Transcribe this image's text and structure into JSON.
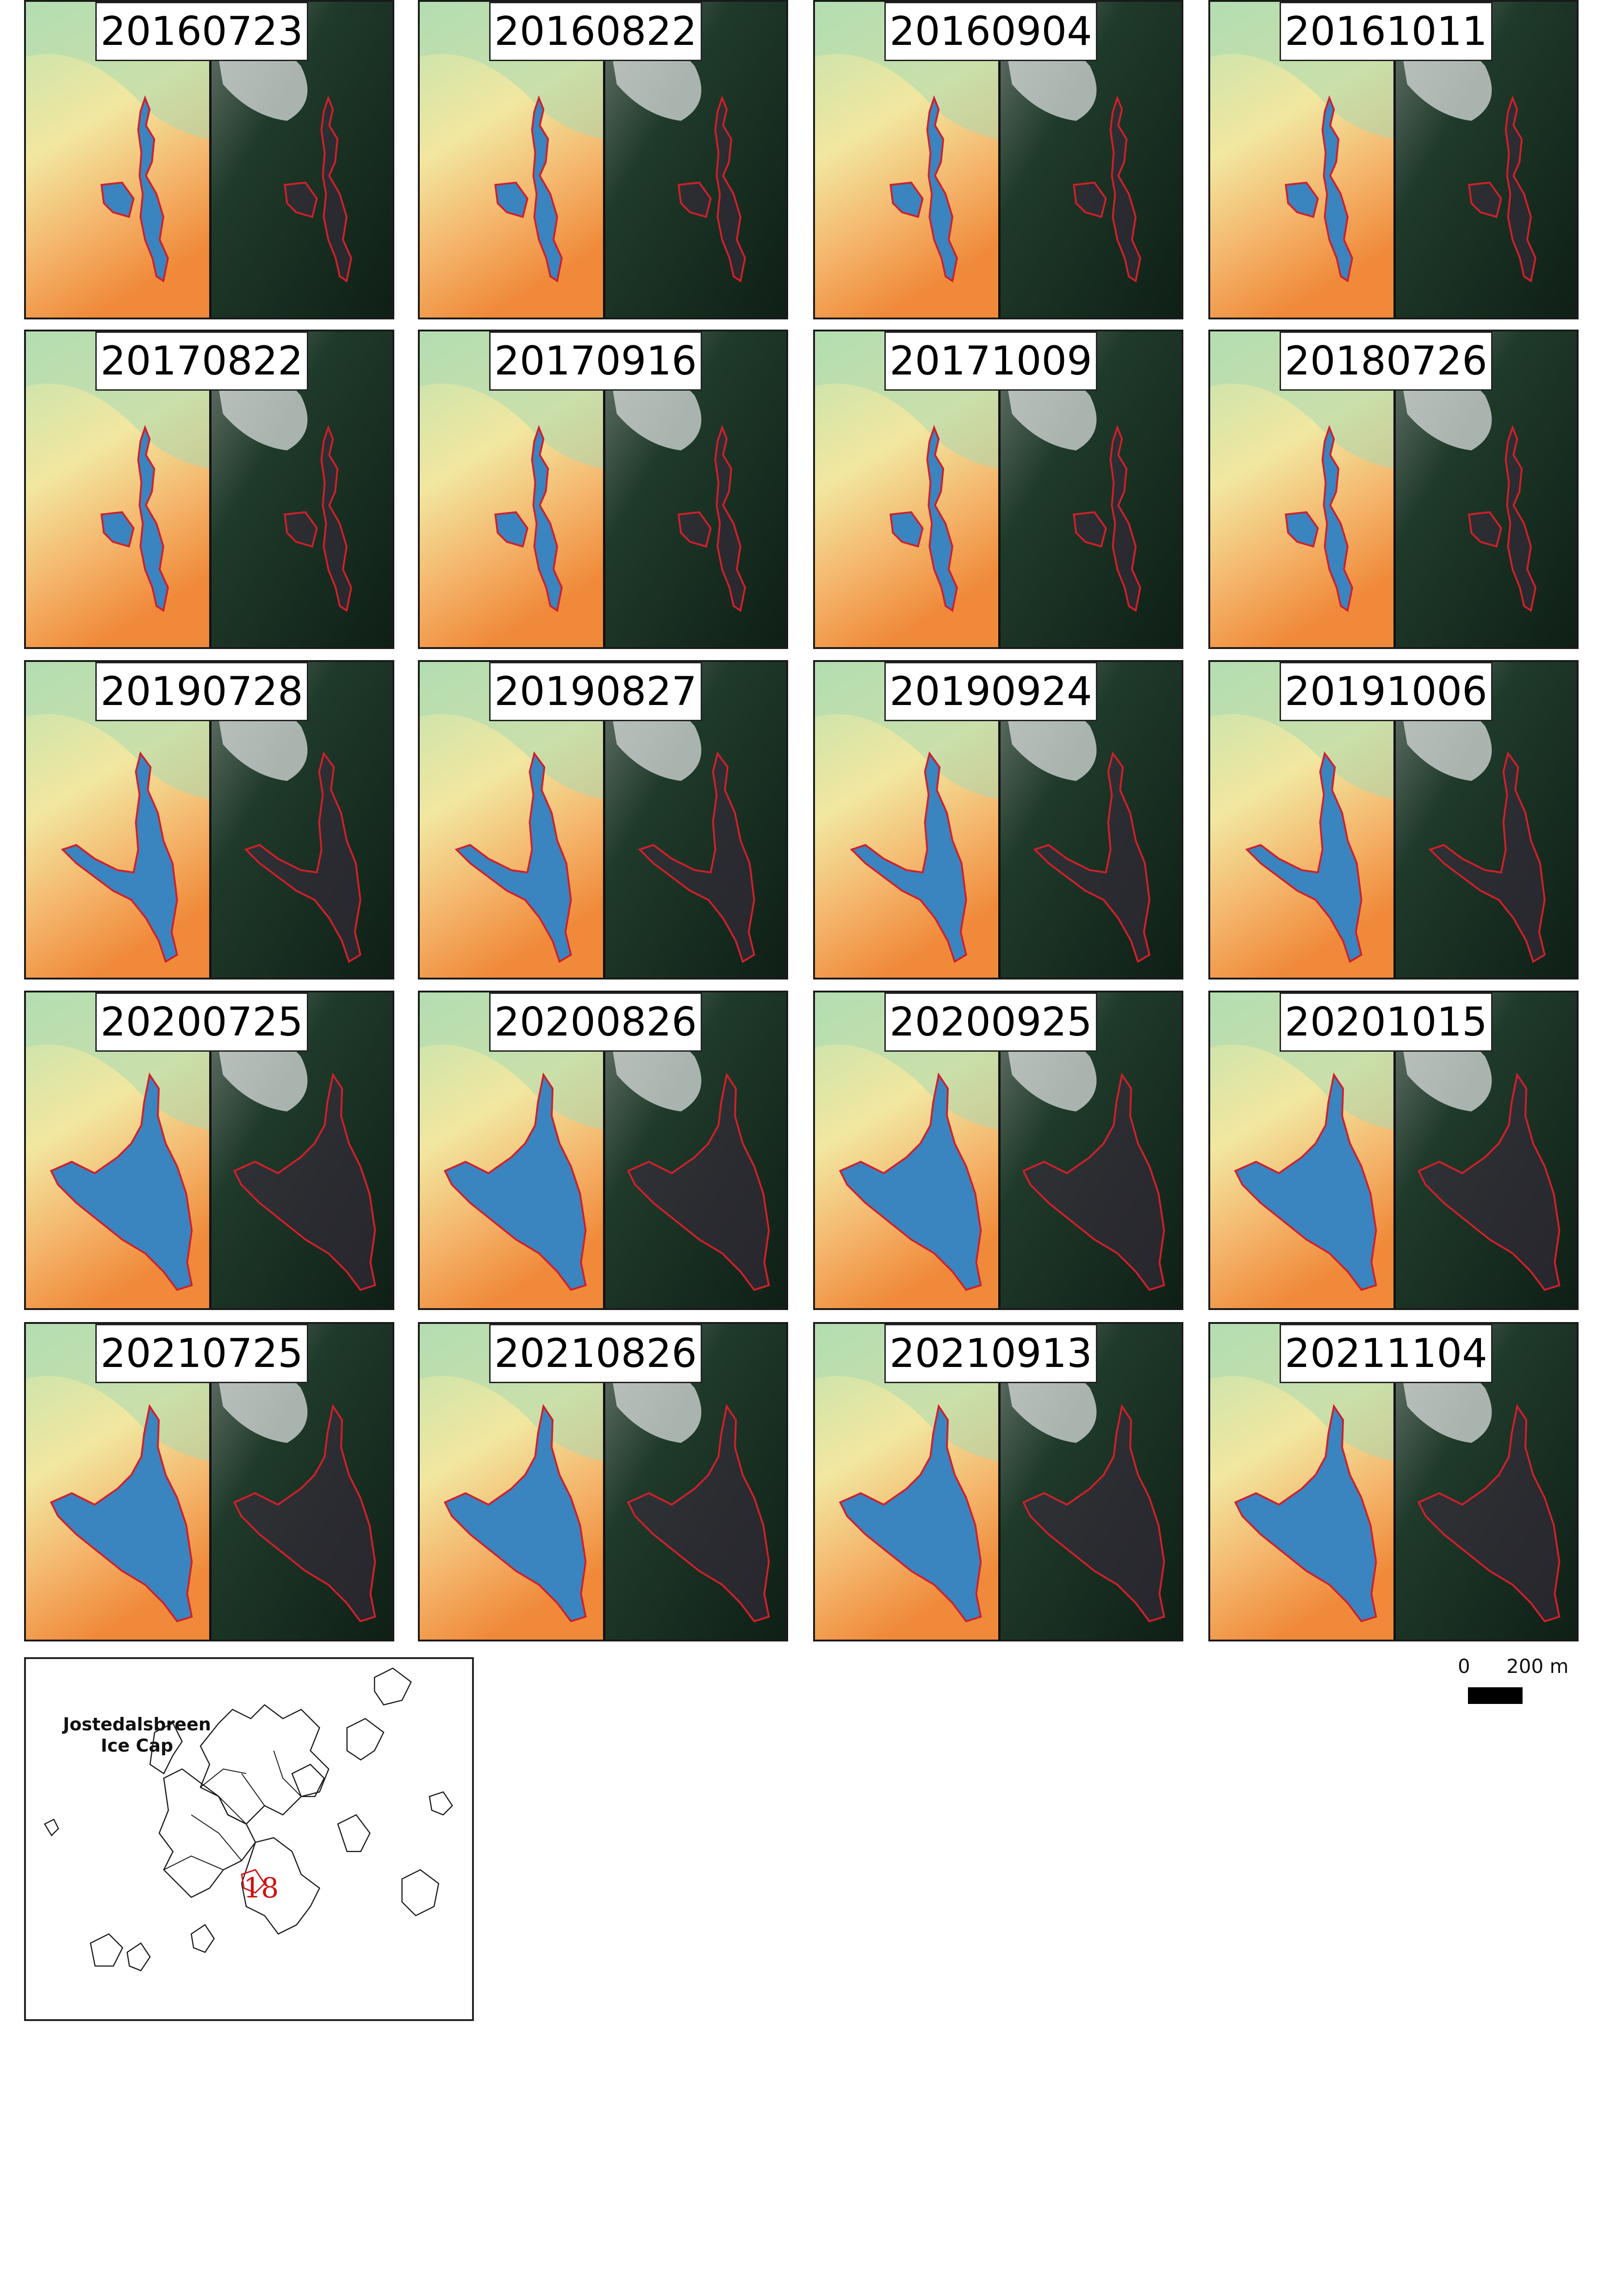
{
  "panels": [
    {
      "date": "20160723"
    },
    {
      "date": "20160822"
    },
    {
      "date": "20160904"
    },
    {
      "date": "20161011"
    },
    {
      "date": "20170822"
    },
    {
      "date": "20170916"
    },
    {
      "date": "20171009"
    },
    {
      "date": "20180726"
    },
    {
      "date": "20190728"
    },
    {
      "date": "20190827"
    },
    {
      "date": "20190924"
    },
    {
      "date": "20191006"
    },
    {
      "date": "20200725"
    },
    {
      "date": "20200826"
    },
    {
      "date": "20200925"
    },
    {
      "date": "20201015"
    },
    {
      "date": "20210725"
    },
    {
      "date": "20210826"
    },
    {
      "date": "20210913"
    },
    {
      "date": "20211104"
    }
  ],
  "inset": {
    "title": "Jostedalsbreen\nIce Cap",
    "region_id": "18",
    "outline_color": "#1a1a1a",
    "highlight_color": "#d01010"
  },
  "scale_bar": {
    "zero_label": "0",
    "max_label": "200 m"
  },
  "colors": {
    "lake_fill": "#3a84c0",
    "outline": "#d0202a",
    "index_low": "#f08a3a",
    "index_high": "#bfe3b0",
    "rgb_dark": "#1f3a2a"
  }
}
